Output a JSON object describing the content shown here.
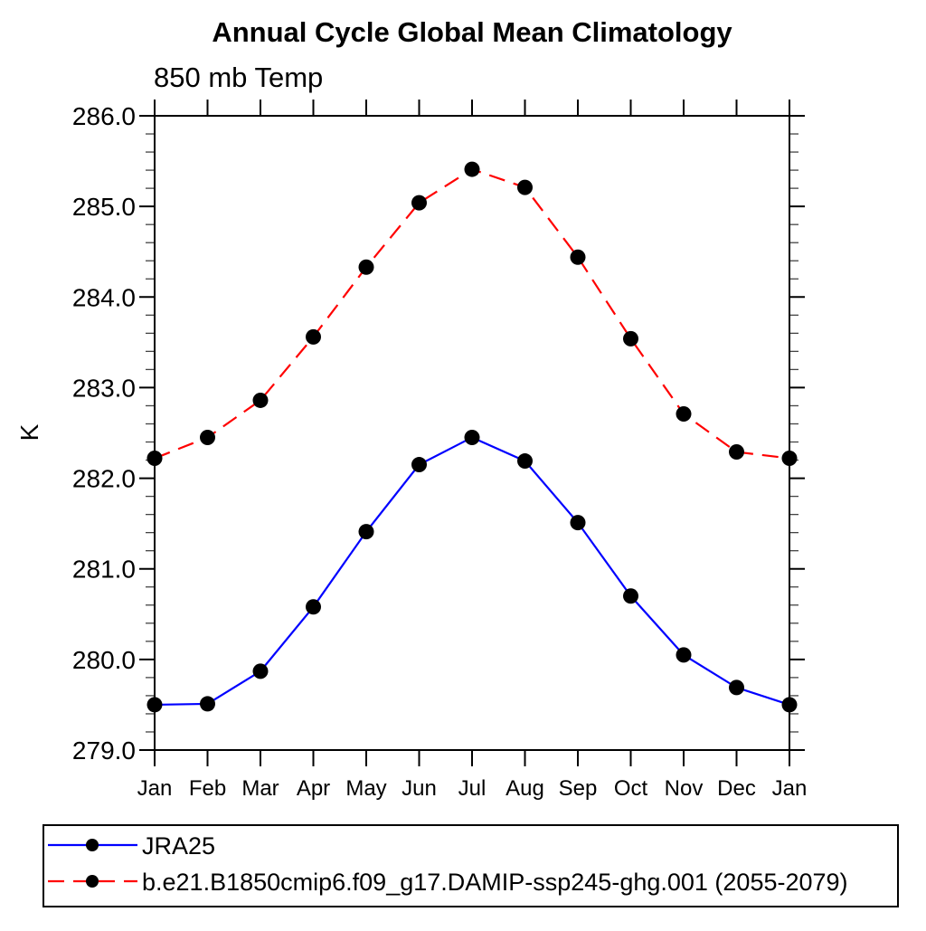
{
  "chart_data": {
    "type": "line",
    "title": "Annual Cycle Global Mean Climatology",
    "left_string": "850 mb Temp",
    "ylabel": "K",
    "xlabel": "",
    "categories": [
      "Jan",
      "Feb",
      "Mar",
      "Apr",
      "May",
      "Jun",
      "Jul",
      "Aug",
      "Sep",
      "Oct",
      "Nov",
      "Dec",
      "Jan"
    ],
    "ylim": [
      279.0,
      286.0
    ],
    "ytick_major": 1.0,
    "ytick_minor": 0.2,
    "ytick_labels": [
      "279.0",
      "280.0",
      "281.0",
      "282.0",
      "283.0",
      "284.0",
      "285.0",
      "286.0"
    ],
    "grid": false,
    "legend_position": "bottom-left-box",
    "axis_color": "#000000",
    "marker_color": "#000000",
    "series": [
      {
        "name": "JRA25",
        "color": "#0000ff",
        "style": "solid",
        "marker": "circle",
        "values": [
          279.5,
          279.51,
          279.87,
          280.58,
          281.41,
          282.15,
          282.45,
          282.19,
          281.51,
          280.7,
          280.05,
          279.69,
          279.5
        ]
      },
      {
        "name": "b.e21.B1850cmip6.f09_g17.DAMIP-ssp245-ghg.001 (2055-2079)",
        "color": "#ff0000",
        "style": "dashed",
        "marker": "circle",
        "values": [
          282.22,
          282.45,
          282.86,
          283.56,
          284.33,
          285.04,
          285.41,
          285.21,
          284.44,
          283.54,
          282.71,
          282.29,
          282.22
        ]
      }
    ]
  }
}
